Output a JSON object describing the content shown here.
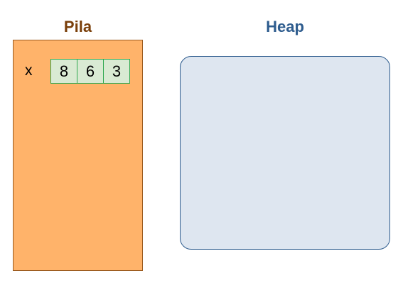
{
  "stack": {
    "title": "Pila",
    "variable_name": "x",
    "array_values": [
      "8",
      "6",
      "3"
    ]
  },
  "heap": {
    "title": "Heap"
  },
  "colors": {
    "stack_title": "#7a3f0a",
    "heap_title": "#2e5c8e",
    "stack_fill": "#ffb36a",
    "heap_fill": "#dee6f0",
    "cell_fill": "#d9ead3",
    "cell_border": "#2fa84f"
  }
}
